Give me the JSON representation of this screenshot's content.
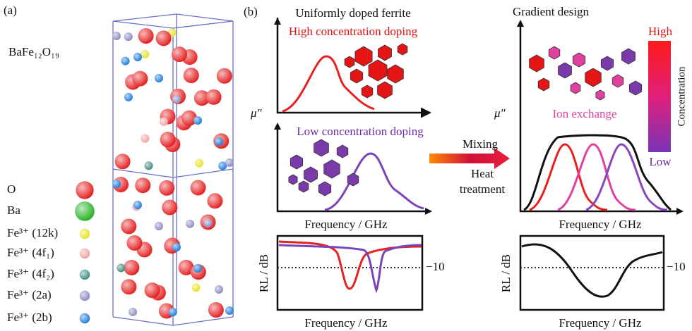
{
  "panel_a": {
    "label": "(a)",
    "formula": "BaFe₁₂O₁₉",
    "legend": [
      "O",
      "Ba",
      "Fe³⁺ (12k)",
      "Fe³⁺ (4f₁)",
      "Fe³⁺ (4f₂)",
      "Fe³⁺ (2a)",
      "Fe³⁺ (2b)"
    ]
  },
  "panel_b": {
    "label": "(b)",
    "uniform": {
      "title": "Uniformly doped ferrite",
      "high_label": "High concentration doping",
      "low_label": "Low concentration doping",
      "y_label": "μ″",
      "x_label": "Frequency / GHz"
    },
    "uniform_rl": {
      "y_label": "RL / dB",
      "threshold_label": "−10",
      "x_label": "Frequency / GHz"
    },
    "process": {
      "top": "Mixing",
      "bottom_1": "Heat",
      "bottom_2": "treatment"
    },
    "gradient": {
      "title": "Gradient design",
      "y_label": "μ″",
      "annotation": "Ion exchange",
      "scale_high": "High",
      "scale_low": "Low",
      "scale_title": "Concentration",
      "x_label": "Frequency / GHz"
    },
    "gradient_rl": {
      "y_label": "RL / dB",
      "threshold_label": "−10",
      "x_label": "Frequency / GHz"
    }
  }
}
